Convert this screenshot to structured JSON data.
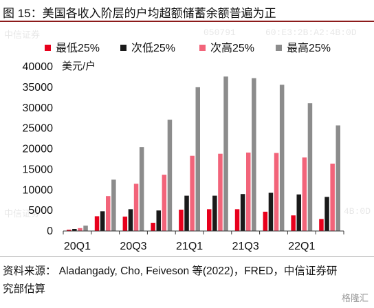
{
  "title": "图 15：美国各收入阶层的户均超额储蓄余额普遍为正",
  "source": "资料来源： Aladangady, Cho, Feiveson 等(2022)，FRED，中信证券研究部估算",
  "watermarks": [
    "中信证券",
    "050791",
    "60:E3:2B:A2:4B:0D",
    "中信证券",
    "4B:0D"
  ],
  "logo_text": "格隆汇",
  "colors": {
    "lowest25": "#e8001c",
    "lower25": "#1a1a1a",
    "higher25": "#f2647a",
    "highest25": "#8c8c8c",
    "title_rule": "#8c1b1b"
  },
  "chart_data": {
    "type": "bar",
    "title": "",
    "ylabel": "美元/户",
    "xlabel": "",
    "ylim": [
      0,
      40000
    ],
    "yticks": [
      "0",
      "5000",
      "10000",
      "15000",
      "20000",
      "25000",
      "30000",
      "35000",
      "40000"
    ],
    "categories": [
      "20Q1",
      "20Q2",
      "20Q3",
      "20Q4",
      "21Q1",
      "21Q2",
      "21Q3",
      "21Q4",
      "22Q1",
      "22Q2"
    ],
    "xtick_labels": [
      "20Q1",
      "",
      "20Q3",
      "",
      "21Q1",
      "",
      "21Q3",
      "",
      "22Q1",
      ""
    ],
    "legend_position": "top",
    "series": [
      {
        "name": "最低25%",
        "color_key": "lowest25",
        "values": [
          300,
          3600,
          3500,
          2000,
          5200,
          5300,
          5300,
          4700,
          3800,
          2900
        ]
      },
      {
        "name": "次低25%",
        "color_key": "lower25",
        "values": [
          500,
          4800,
          5300,
          5000,
          8600,
          8600,
          9000,
          9300,
          8900,
          8300
        ]
      },
      {
        "name": "次高25%",
        "color_key": "higher25",
        "values": [
          700,
          8500,
          11500,
          13700,
          18300,
          18800,
          19100,
          19000,
          17900,
          16400
        ]
      },
      {
        "name": "最高25%",
        "color_key": "highest25",
        "values": [
          1300,
          12500,
          20400,
          27100,
          35000,
          37600,
          37200,
          35600,
          31100,
          25700
        ]
      }
    ]
  }
}
